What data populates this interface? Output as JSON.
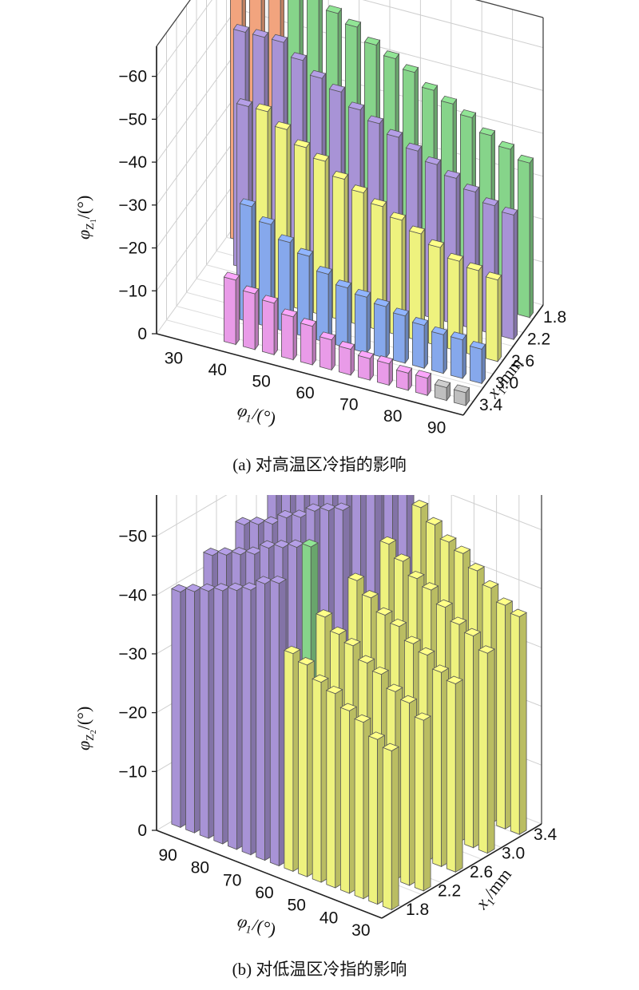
{
  "chart_data": [
    {
      "type": "bar3d",
      "caption": "(a) 对高温区冷指的影响",
      "phi_axis": {
        "label": "φ₁/(°)",
        "ticks": [
          "30",
          "40",
          "50",
          "60",
          "70",
          "80",
          "90"
        ],
        "direction": "left-to-right"
      },
      "x_axis": {
        "label": "x₁/mm",
        "ticks": [
          "1.8",
          "2.2",
          "2.6",
          "3.0",
          "3.4"
        ],
        "direction": "back-to-front"
      },
      "z_axis": {
        "label": "φZ₁/(°)",
        "ticks": [
          "0",
          "−10",
          "−20",
          "−30",
          "−40",
          "−50",
          "−60"
        ],
        "range": [
          0,
          -67
        ]
      },
      "colors": {
        "green": "#86d48a",
        "purple": "#a893d6",
        "yellow": "#eef27e",
        "blue": "#86a8ec",
        "pink": "#e99be8",
        "orange": "#f2a47e",
        "gray": "#bfbfbf"
      },
      "series": [
        {
          "x": 3.4,
          "values": [
            null,
            null,
            null,
            -15,
            -13,
            -12,
            -10,
            -9,
            -7,
            -6,
            -5,
            -5,
            -4,
            -4,
            -3,
            -3
          ]
        },
        {
          "x": 3.0,
          "values": [
            null,
            null,
            null,
            -27,
            -24,
            -21,
            -19,
            -16,
            -14,
            -13,
            -12,
            -11,
            -10,
            -9,
            -9,
            -8
          ]
        },
        {
          "x": 2.6,
          "values": [
            null,
            null,
            -44,
            -44,
            -41,
            -38,
            -36,
            -33,
            -31,
            -29,
            -27,
            -25,
            -23,
            -21,
            -20,
            -19
          ]
        },
        {
          "x": 2.2,
          "values": [
            null,
            -55,
            -55,
            -55,
            -52,
            -49,
            -47,
            -44,
            -42,
            -40,
            -38,
            -36,
            -34,
            -32,
            -30,
            -29
          ]
        },
        {
          "x": 1.8,
          "values": [
            -63,
            -63,
            -63,
            -63,
            -61,
            -59,
            -57,
            -54,
            -52,
            -50,
            -47,
            -45,
            -43,
            -40,
            -38,
            -36
          ]
        }
      ]
    },
    {
      "type": "bar3d",
      "caption": "(b) 对低温区冷指的影响",
      "phi_axis": {
        "label": "φ₁/(°)",
        "ticks": [
          "90",
          "80",
          "70",
          "60",
          "50",
          "40",
          "30"
        ],
        "direction": "left-to-right"
      },
      "x_axis": {
        "label": "x₁/mm",
        "ticks": [
          "1.8",
          "2.2",
          "2.6",
          "3.0",
          "3.4"
        ],
        "direction": "front-to-back"
      },
      "z_axis": {
        "label": "φZ₂/(°)",
        "ticks": [
          "0",
          "−10",
          "−20",
          "−30",
          "−40",
          "−50"
        ],
        "range": [
          0,
          -57
        ]
      },
      "colors": {
        "green": "#86d48a",
        "purple": "#a893d6",
        "yellow": "#eef27e"
      },
      "series": [
        {
          "x": 3.4,
          "values": [
            -48,
            -49,
            -51,
            -52,
            -53,
            -55,
            -56,
            -57,
            -49,
            -47,
            -45,
            -44,
            -42,
            -40,
            -38,
            -37
          ]
        },
        {
          "x": 3.0,
          "values": [
            -47,
            -48,
            -50,
            -51,
            -53,
            -54,
            -55,
            -56,
            -46,
            -44,
            -42,
            -41,
            -39,
            -37,
            -36,
            -34
          ]
        },
        {
          "x": 2.6,
          "values": [
            -45,
            -46,
            -47,
            -49,
            -50,
            -52,
            -53,
            -54,
            -43,
            -41,
            -39,
            -38,
            -36,
            -35,
            -33,
            -32
          ]
        },
        {
          "x": 2.2,
          "values": [
            -43,
            -44,
            -45,
            -46,
            -48,
            -49,
            -50,
            -51,
            -40,
            -38,
            -37,
            -35,
            -34,
            -32,
            -31,
            -29
          ]
        },
        {
          "x": 1.8,
          "values": [
            -40,
            -41,
            -42,
            -43,
            -44,
            -45,
            -47,
            -48,
            -37,
            -36,
            -34,
            -33,
            -31,
            -30,
            -28,
            -27
          ]
        }
      ]
    }
  ]
}
